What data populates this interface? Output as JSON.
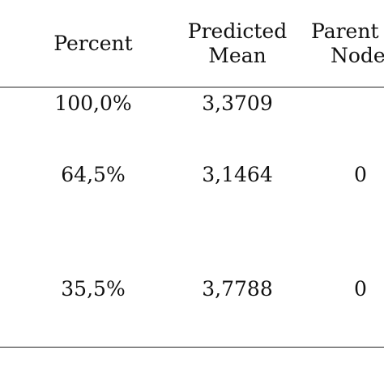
{
  "table": {
    "headers": {
      "percent": "Percent",
      "predicted_mean_line1": "Predicted",
      "predicted_mean_line2": "Mean",
      "parent_node_line1": "Parent",
      "parent_node_line2": "Node"
    },
    "rows": [
      {
        "percent": "100,0%",
        "predicted_mean": "3,3709",
        "parent_node": ""
      },
      {
        "percent": "64,5%",
        "predicted_mean": "3,1464",
        "parent_node": "0"
      },
      {
        "percent": "35,5%",
        "predicted_mean": "3,7788",
        "parent_node": "0"
      }
    ]
  }
}
